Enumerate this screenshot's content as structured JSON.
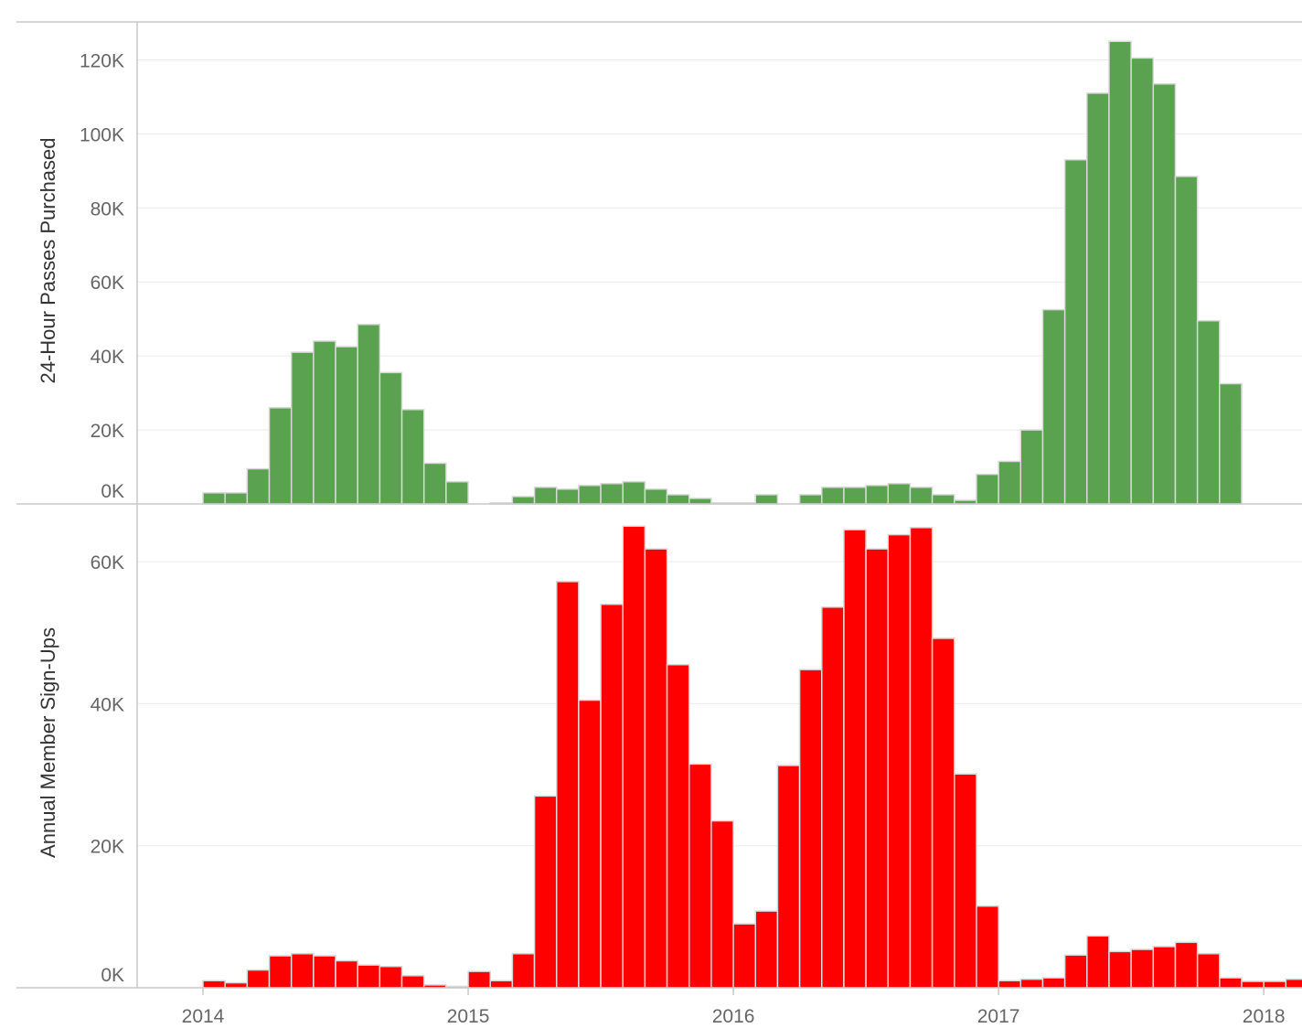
{
  "chart_data": [
    {
      "type": "bar",
      "ylabel": "24-Hour Passes Purchased",
      "color": "#5aa150",
      "ylim": [
        0,
        130000
      ],
      "yticks": [
        0,
        20000,
        40000,
        60000,
        80000,
        100000,
        120000
      ],
      "ytick_labels": [
        "0K",
        "20K",
        "40K",
        "60K",
        "80K",
        "100K",
        "120K"
      ],
      "x_start": "2014-01",
      "values": [
        3000,
        3000,
        9500,
        26000,
        41000,
        44000,
        42500,
        48500,
        35500,
        25500,
        11000,
        6000,
        0,
        300,
        2000,
        4500,
        4000,
        5000,
        5500,
        6000,
        4000,
        2500,
        1500,
        300,
        300,
        2500,
        0,
        2500,
        4500,
        4500,
        5000,
        5500,
        4500,
        2500,
        1000,
        8000,
        11500,
        20000,
        52500,
        93000,
        111000,
        125000,
        120500,
        113500,
        88500,
        49500,
        32500
      ]
    },
    {
      "type": "bar",
      "ylabel": "Annual Member Sign-Ups",
      "color": "#ff0000",
      "ylim": [
        0,
        68000
      ],
      "yticks": [
        0,
        20000,
        40000,
        60000
      ],
      "ytick_labels": [
        "0K",
        "20K",
        "40K",
        "60K"
      ],
      "x_start": "2014-01",
      "values": [
        1000,
        700,
        2500,
        4500,
        4800,
        4500,
        3800,
        3200,
        3000,
        1700,
        400,
        200,
        2300,
        1000,
        4800,
        27000,
        57200,
        40500,
        54000,
        65000,
        61800,
        45500,
        31500,
        23500,
        9000,
        10800,
        31300,
        44800,
        53600,
        64500,
        61800,
        63800,
        64800,
        49200,
        30100,
        11500,
        1000,
        1200,
        1400,
        4600,
        7300,
        5100,
        5400,
        5800,
        6400,
        4800,
        1400,
        900,
        900,
        1200
      ]
    }
  ],
  "xaxis": {
    "ticks": [
      {
        "date": "2014-01",
        "label": "2014"
      },
      {
        "date": "2015-01",
        "label": "2015"
      },
      {
        "date": "2016-01",
        "label": "2016"
      },
      {
        "date": "2017-01",
        "label": "2017"
      },
      {
        "date": "2018-01",
        "label": "2018"
      }
    ]
  }
}
